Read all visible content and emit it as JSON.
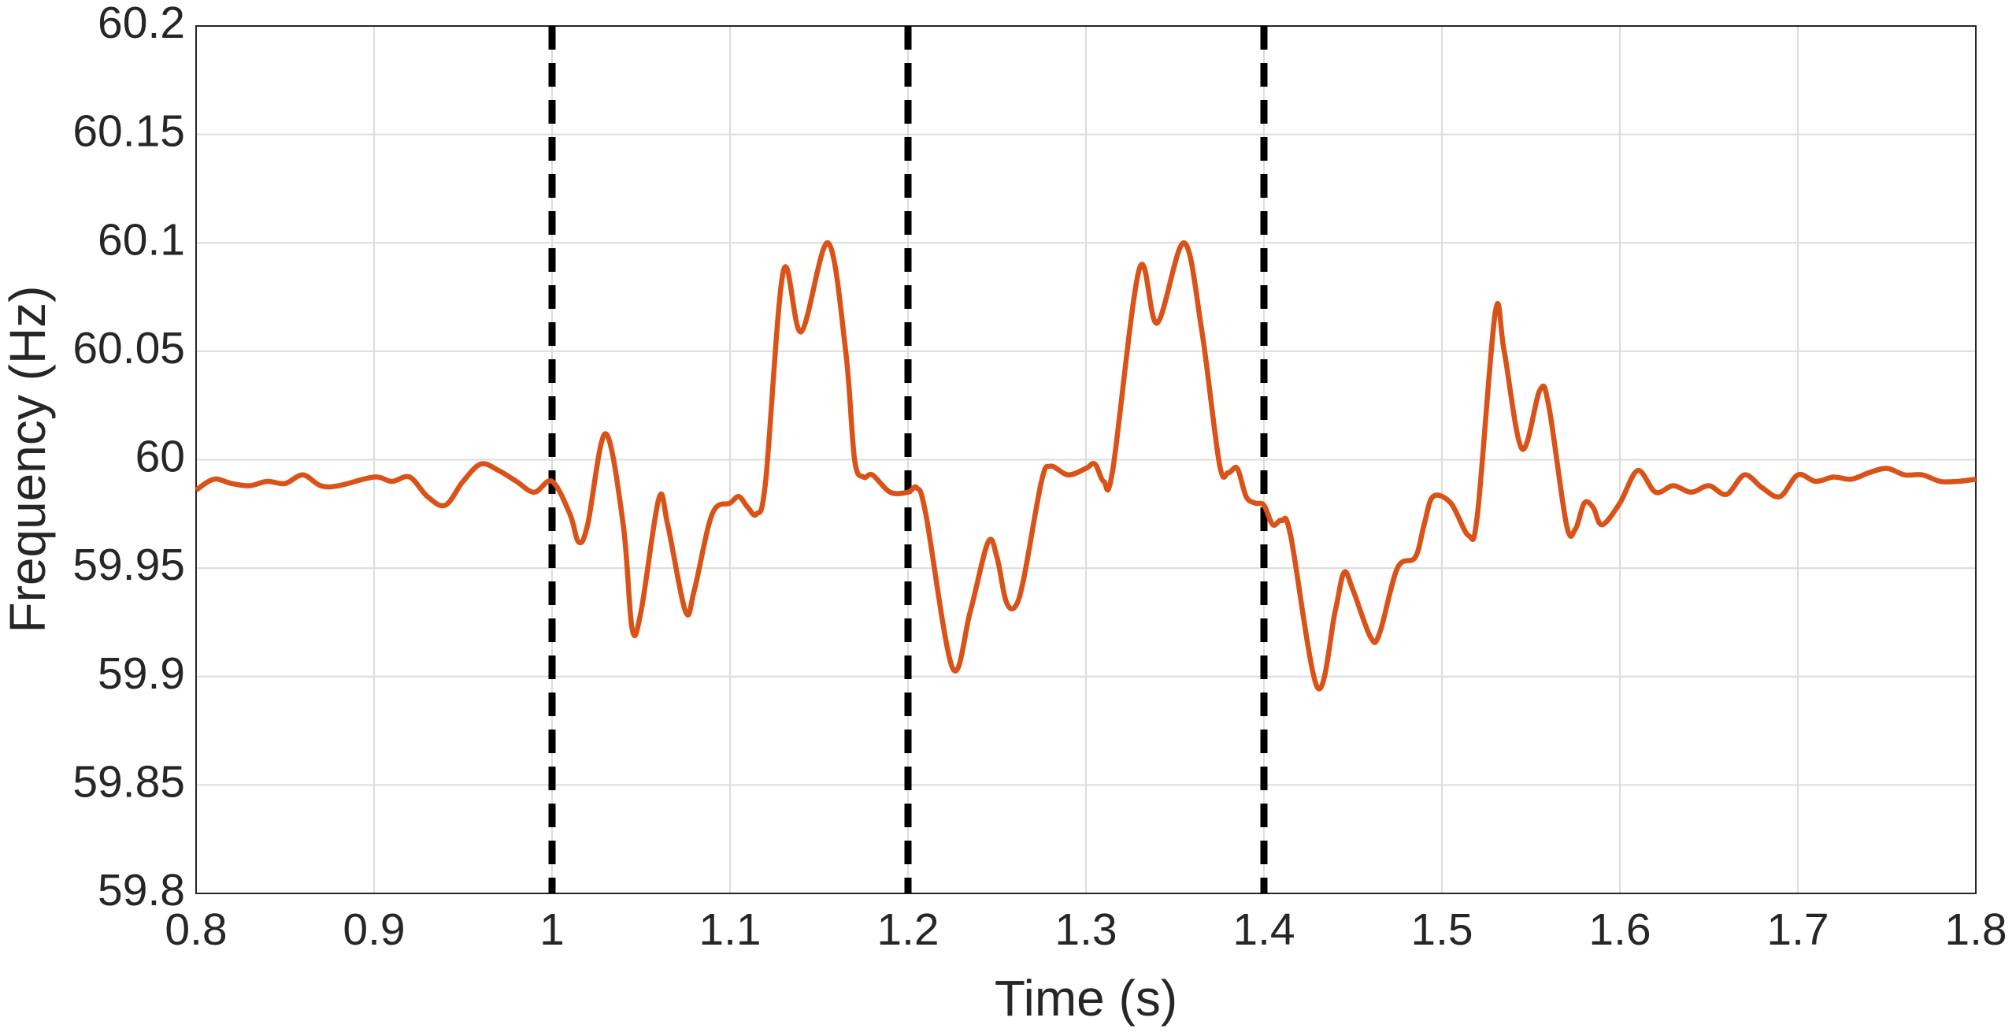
{
  "chart_data": {
    "type": "line",
    "xlabel": "Time (s)",
    "ylabel": "Frequency (Hz)",
    "xlim": [
      0.8,
      1.8
    ],
    "xticks": [
      0.8,
      0.9,
      1,
      1.1,
      1.2,
      1.3,
      1.4,
      1.5,
      1.6,
      1.7,
      1.8
    ],
    "ylim": [
      59.8,
      60.2
    ],
    "yticks": [
      59.8,
      59.85,
      59.9,
      59.95,
      60,
      60.05,
      60.1,
      60.15,
      60.2
    ],
    "grid": true,
    "vlines": [
      1,
      1.2,
      1.4
    ],
    "vline_color": "#000000",
    "series": [
      {
        "color": "#d95319",
        "x": [
          0.8,
          0.81,
          0.82,
          0.83,
          0.84,
          0.85,
          0.86,
          0.87,
          0.88,
          0.9,
          0.91,
          0.92,
          0.93,
          0.94,
          0.95,
          0.96,
          0.97,
          0.98,
          0.99,
          1.0,
          1.01,
          1.015,
          1.02,
          1.03,
          1.04,
          1.045,
          1.05,
          1.06,
          1.065,
          1.075,
          1.08,
          1.09,
          1.1,
          1.105,
          1.11,
          1.115,
          1.12,
          1.13,
          1.14,
          1.155,
          1.165,
          1.17,
          1.175,
          1.18,
          1.19,
          1.2,
          1.205,
          1.21,
          1.225,
          1.235,
          1.245,
          1.25,
          1.255,
          1.26,
          1.265,
          1.275,
          1.28,
          1.29,
          1.3,
          1.305,
          1.31,
          1.315,
          1.33,
          1.34,
          1.355,
          1.365,
          1.375,
          1.38,
          1.385,
          1.39,
          1.395,
          1.4,
          1.405,
          1.41,
          1.415,
          1.43,
          1.44,
          1.445,
          1.45,
          1.46,
          1.465,
          1.475,
          1.485,
          1.49,
          1.495,
          1.505,
          1.515,
          1.52,
          1.53,
          1.535,
          1.545,
          1.555,
          1.56,
          1.57,
          1.575,
          1.58,
          1.585,
          1.59,
          1.6,
          1.61,
          1.62,
          1.63,
          1.64,
          1.65,
          1.66,
          1.67,
          1.68,
          1.69,
          1.7,
          1.71,
          1.72,
          1.73,
          1.74,
          1.75,
          1.76,
          1.77,
          1.78,
          1.79,
          1.8
        ],
        "values": [
          59.986,
          59.991,
          59.989,
          59.988,
          59.99,
          59.989,
          59.993,
          59.988,
          59.988,
          59.992,
          59.99,
          59.992,
          59.983,
          59.979,
          59.99,
          59.998,
          59.995,
          59.99,
          59.985,
          59.99,
          59.975,
          59.962,
          59.97,
          60.012,
          59.97,
          59.922,
          59.93,
          59.982,
          59.97,
          59.93,
          59.94,
          59.975,
          59.98,
          59.983,
          59.978,
          59.975,
          59.99,
          60.087,
          60.059,
          60.1,
          60.05,
          60.0,
          59.992,
          59.993,
          59.985,
          59.985,
          59.987,
          59.975,
          59.904,
          59.93,
          59.962,
          59.955,
          59.935,
          59.932,
          59.945,
          59.99,
          59.997,
          59.993,
          59.996,
          59.998,
          59.99,
          59.995,
          60.088,
          60.063,
          60.1,
          60.06,
          59.998,
          59.994,
          59.996,
          59.983,
          59.98,
          59.979,
          59.97,
          59.972,
          59.965,
          59.895,
          59.93,
          59.948,
          59.94,
          59.918,
          59.92,
          59.95,
          59.955,
          59.97,
          59.983,
          59.98,
          59.965,
          59.975,
          60.068,
          60.05,
          60.005,
          60.032,
          60.025,
          59.97,
          59.968,
          59.98,
          59.978,
          59.97,
          59.98,
          59.995,
          59.985,
          59.988,
          59.985,
          59.988,
          59.984,
          59.993,
          59.987,
          59.983,
          59.993,
          59.99,
          59.992,
          59.991,
          59.994,
          59.996,
          59.993,
          59.993,
          59.99,
          59.99,
          59.991
        ]
      }
    ]
  }
}
